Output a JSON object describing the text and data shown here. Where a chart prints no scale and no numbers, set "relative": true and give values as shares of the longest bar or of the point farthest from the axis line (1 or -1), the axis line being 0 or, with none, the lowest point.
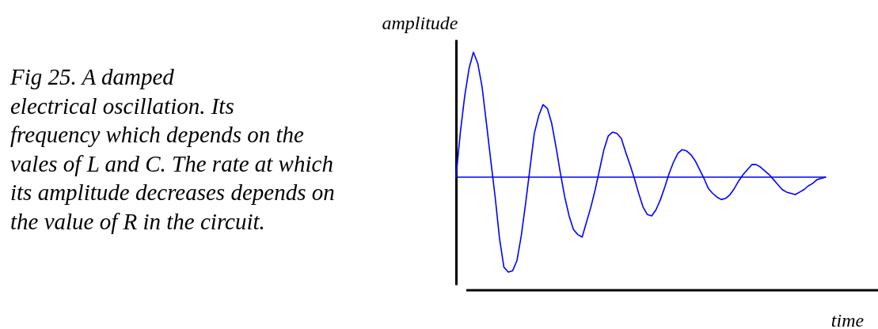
{
  "chart_data": {
    "type": "line",
    "relative": true,
    "xlabel": "time",
    "ylabel": "amplitude",
    "annotations": [
      "Fig 25.  A damped\nelectrical oscillation. Its\nfrequency  which depends on the\nvales of L and C. The rate at which\nits amplitude decreases depends on\nthe value of R in the circuit."
    ],
    "categories": [
      null,
      null,
      null,
      null,
      null,
      null,
      null,
      null,
      null,
      null,
      null,
      null,
      null,
      null,
      null,
      null,
      null,
      null,
      null,
      null,
      null,
      null,
      null,
      null,
      null,
      null,
      null,
      null,
      null,
      null,
      null,
      null,
      null,
      null,
      null,
      null,
      null,
      null,
      null,
      null,
      null,
      null,
      null,
      null,
      null,
      null,
      null,
      null,
      null,
      null,
      null,
      null,
      null,
      null,
      null,
      null,
      null,
      null,
      null,
      null,
      null,
      null,
      null,
      null,
      null,
      null,
      null,
      null,
      null,
      null,
      null,
      null,
      null,
      null,
      null,
      null,
      null,
      null,
      null,
      null,
      null,
      null,
      null,
      null,
      null,
      null
    ],
    "series": [
      {
        "color": "#0000ff",
        "values": [
          0,
          0.36,
          0.65,
          0.87,
          1,
          0.91,
          0.72,
          0.43,
          0.13,
          -0.16,
          -0.49,
          -0.72,
          -0.76,
          -0.75,
          -0.67,
          -0.47,
          -0.21,
          0.07,
          0.35,
          0.49,
          0.58,
          0.55,
          0.43,
          0.24,
          0.03,
          -0.16,
          -0.31,
          -0.42,
          -0.46,
          -0.48,
          -0.36,
          -0.24,
          -0.1,
          0.06,
          0.22,
          0.33,
          0.36,
          0.35,
          0.31,
          0.2,
          0.1,
          -0.01,
          -0.13,
          -0.24,
          -0.3,
          -0.31,
          -0.26,
          -0.18,
          -0.08,
          0.03,
          0.12,
          0.19,
          0.22,
          0.21,
          0.18,
          0.13,
          0.06,
          -0.01,
          -0.09,
          -0.13,
          -0.16,
          -0.18,
          -0.17,
          -0.14,
          -0.09,
          -0.03,
          0.02,
          0.06,
          0.1,
          0.1,
          0.08,
          0.05,
          0.02,
          -0.02,
          -0.06,
          -0.1,
          -0.12,
          -0.13,
          -0.14,
          -0.12,
          -0.1,
          -0.07,
          -0.05,
          -0.02,
          -0.01,
          0
        ]
      }
    ],
    "ref_lines": [
      {
        "axis": "y",
        "value": 0,
        "color": "#0000ff"
      }
    ]
  }
}
